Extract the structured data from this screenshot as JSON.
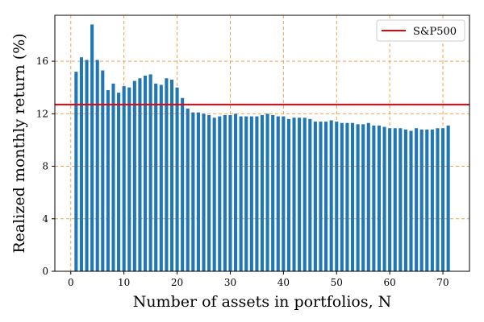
{
  "chart_data": {
    "type": "bar",
    "xlabel": "Number of assets in portfolios, N",
    "ylabel": "Realized monthly return (%)",
    "x": [
      1,
      2,
      3,
      4,
      5,
      6,
      7,
      8,
      9,
      10,
      11,
      12,
      13,
      14,
      15,
      16,
      17,
      18,
      19,
      20,
      21,
      22,
      23,
      24,
      25,
      26,
      27,
      28,
      29,
      30,
      31,
      32,
      33,
      34,
      35,
      36,
      37,
      38,
      39,
      40,
      41,
      42,
      43,
      44,
      45,
      46,
      47,
      48,
      49,
      50,
      51,
      52,
      53,
      54,
      55,
      56,
      57,
      58,
      59,
      60,
      61,
      62,
      63,
      64,
      65,
      66,
      67,
      68,
      69,
      70,
      71
    ],
    "values": [
      15.2,
      16.3,
      16.1,
      18.8,
      16.1,
      15.3,
      13.8,
      14.3,
      13.6,
      14.1,
      14.0,
      14.5,
      14.7,
      14.9,
      15.0,
      14.3,
      14.2,
      14.7,
      14.6,
      14.0,
      13.2,
      12.4,
      12.1,
      12.1,
      12.0,
      11.9,
      11.7,
      11.8,
      11.9,
      11.9,
      12.0,
      11.8,
      11.8,
      11.8,
      11.8,
      11.9,
      12.0,
      11.9,
      11.8,
      11.8,
      11.6,
      11.7,
      11.7,
      11.7,
      11.6,
      11.4,
      11.4,
      11.4,
      11.5,
      11.4,
      11.3,
      11.3,
      11.3,
      11.2,
      11.2,
      11.3,
      11.1,
      11.1,
      11.0,
      10.9,
      10.9,
      10.9,
      10.8,
      10.7,
      10.9,
      10.8,
      10.8,
      10.8,
      10.9,
      10.9,
      11.1
    ],
    "xlim": [
      -3,
      75
    ],
    "ylim": [
      0,
      19.5
    ],
    "xticks": [
      0,
      10,
      20,
      30,
      40,
      50,
      60,
      70
    ],
    "yticks": [
      0,
      4,
      8,
      12,
      16
    ],
    "grid": true,
    "reference_line": {
      "name": "S&P500",
      "value": 12.7,
      "color": "#e8000b"
    },
    "legend": {
      "placement": "top-right",
      "entries": [
        "S&P500"
      ]
    },
    "bar_color": "#1f77b4"
  },
  "colors": {
    "bars": "#1f77b4",
    "reference": "#e8000b",
    "grid": "#f0a04b"
  }
}
